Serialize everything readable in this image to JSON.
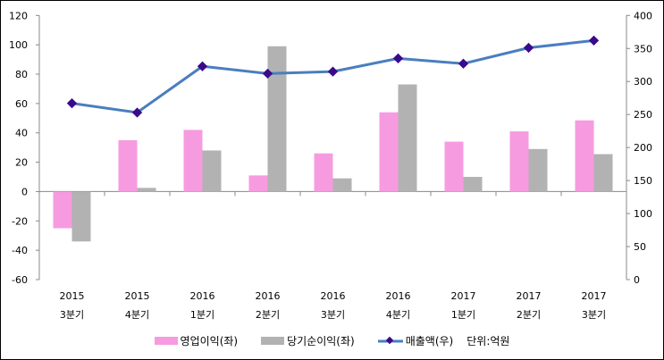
{
  "chart_data": {
    "type": "bar+line",
    "categories": [
      {
        "year": "2015",
        "quarter": "3분기"
      },
      {
        "year": "2015",
        "quarter": "4분기"
      },
      {
        "year": "2016",
        "quarter": "1분기"
      },
      {
        "year": "2016",
        "quarter": "2분기"
      },
      {
        "year": "2016",
        "quarter": "3분기"
      },
      {
        "year": "2016",
        "quarter": "4분기"
      },
      {
        "year": "2017",
        "quarter": "1분기"
      },
      {
        "year": "2017",
        "quarter": "2분기"
      },
      {
        "year": "2017",
        "quarter": "3분기"
      }
    ],
    "series": [
      {
        "name": "영업이익(좌)",
        "type": "bar",
        "axis": "left",
        "color": "#f79be0",
        "values": [
          -25,
          35,
          42,
          11,
          26,
          54,
          34,
          41,
          48.5
        ]
      },
      {
        "name": "당기순이익(좌)",
        "type": "bar",
        "axis": "left",
        "color": "#b2b2b2",
        "values": [
          -34,
          2.5,
          28,
          99,
          9,
          73,
          10,
          29,
          25.5
        ]
      },
      {
        "name": "매출액(우)",
        "type": "line",
        "axis": "right",
        "color": "#4a7ebf",
        "marker_color": "#3a0a8c",
        "values": [
          267,
          253,
          323,
          312,
          315,
          335,
          327,
          351,
          362
        ]
      }
    ],
    "left_axis": {
      "min": -60,
      "max": 120,
      "ticks": [
        "-60",
        "-40",
        "-20",
        "0",
        "20",
        "40",
        "60",
        "80",
        "100",
        "120"
      ]
    },
    "right_axis": {
      "min": 0,
      "max": 400,
      "ticks": [
        "0",
        "50",
        "100",
        "150",
        "200",
        "250",
        "300",
        "350",
        "400"
      ]
    },
    "unit_note": "단위:억원",
    "legend_position": "bottom",
    "grid": false
  }
}
